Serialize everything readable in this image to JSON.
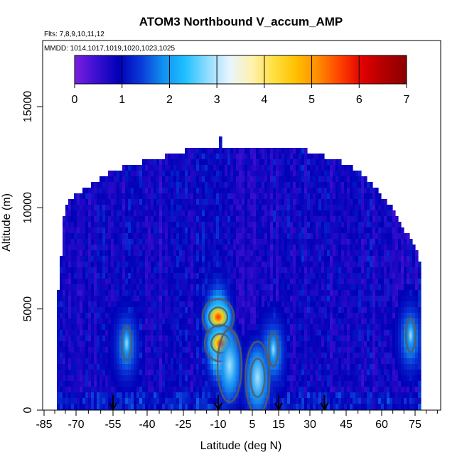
{
  "chart_data": {
    "type": "heatmap",
    "title": "ATOM3 Northbound V_accum_AMP",
    "notes": [
      "Flts: 7,8,9,10,11,12",
      "MMDD: 1014,1017,1019,1020,1023,1025"
    ],
    "xlabel": "Latitude (deg N)",
    "ylabel": "Altitude (m)",
    "xlim": [
      -85,
      85
    ],
    "ylim": [
      0,
      17500
    ],
    "x_ticks": [
      "-85",
      "-70",
      "-55",
      "-40",
      "-25",
      "-10",
      "5",
      "15",
      "30",
      "45",
      "60",
      "75"
    ],
    "x_tick_values": [
      -85,
      -70,
      -55,
      -40,
      -25,
      -10,
      5,
      15,
      30,
      45,
      60,
      75
    ],
    "y_ticks": [
      "0",
      "5000",
      "10000",
      "15000"
    ],
    "y_tick_values": [
      0,
      5000,
      10000,
      15000
    ],
    "colorbar": {
      "range": [
        0,
        7
      ],
      "ticks": [
        "0",
        "1",
        "2",
        "3",
        "4",
        "5",
        "6",
        "7"
      ],
      "tick_values": [
        0,
        1,
        2,
        3,
        4,
        5,
        6,
        7
      ],
      "colors": [
        "#7b1fe0",
        "#3a0fd0",
        "#0000b8",
        "#0a3ad8",
        "#1090f0",
        "#20c0ff",
        "#90dcff",
        "#e8f4ff",
        "#fff2b0",
        "#ffe040",
        "#ffc000",
        "#ff8c00",
        "#ff4000",
        "#e00000",
        "#b00000",
        "#8b0000"
      ]
    },
    "colors": {
      "background_field": "#7a2ee8",
      "contour": "#5a5a5a",
      "arrow": "#000000"
    },
    "coverage_upper_altitude": {
      "lat": [
        -79,
        -75,
        -70,
        -65,
        -60,
        -55,
        -50,
        -45,
        -40,
        -35,
        -30,
        -25,
        -20,
        -15,
        -10,
        -9,
        -8,
        -5,
        0,
        5,
        10,
        15,
        20,
        25,
        30,
        35,
        40,
        45,
        50,
        55,
        60,
        65,
        70,
        75,
        78
      ],
      "alt": [
        4900,
        10200,
        10600,
        11000,
        11400,
        11800,
        12000,
        12200,
        12300,
        12500,
        12600,
        12800,
        12900,
        12900,
        12900,
        13400,
        13000,
        12900,
        12900,
        12900,
        12900,
        12900,
        12900,
        12900,
        12800,
        12600,
        12400,
        12200,
        11800,
        11300,
        10600,
        10000,
        8900,
        8200,
        7000
      ]
    },
    "features": [
      {
        "lat": -10,
        "alt": 4600,
        "value": 4.2
      },
      {
        "lat": -9,
        "alt": 3300,
        "value": 5.5
      },
      {
        "lat": -5,
        "alt": 2200,
        "value": 3.0
      },
      {
        "lat": 7,
        "alt": 1600,
        "value": 3.2
      },
      {
        "lat": 13,
        "alt": 3000,
        "value": 2.1
      },
      {
        "lat": -49,
        "alt": 3300,
        "value": 2.0
      },
      {
        "lat": 73,
        "alt": 3700,
        "value": 2.2
      }
    ],
    "arrow_latitudes": [
      -55,
      -10,
      15,
      36
    ]
  }
}
